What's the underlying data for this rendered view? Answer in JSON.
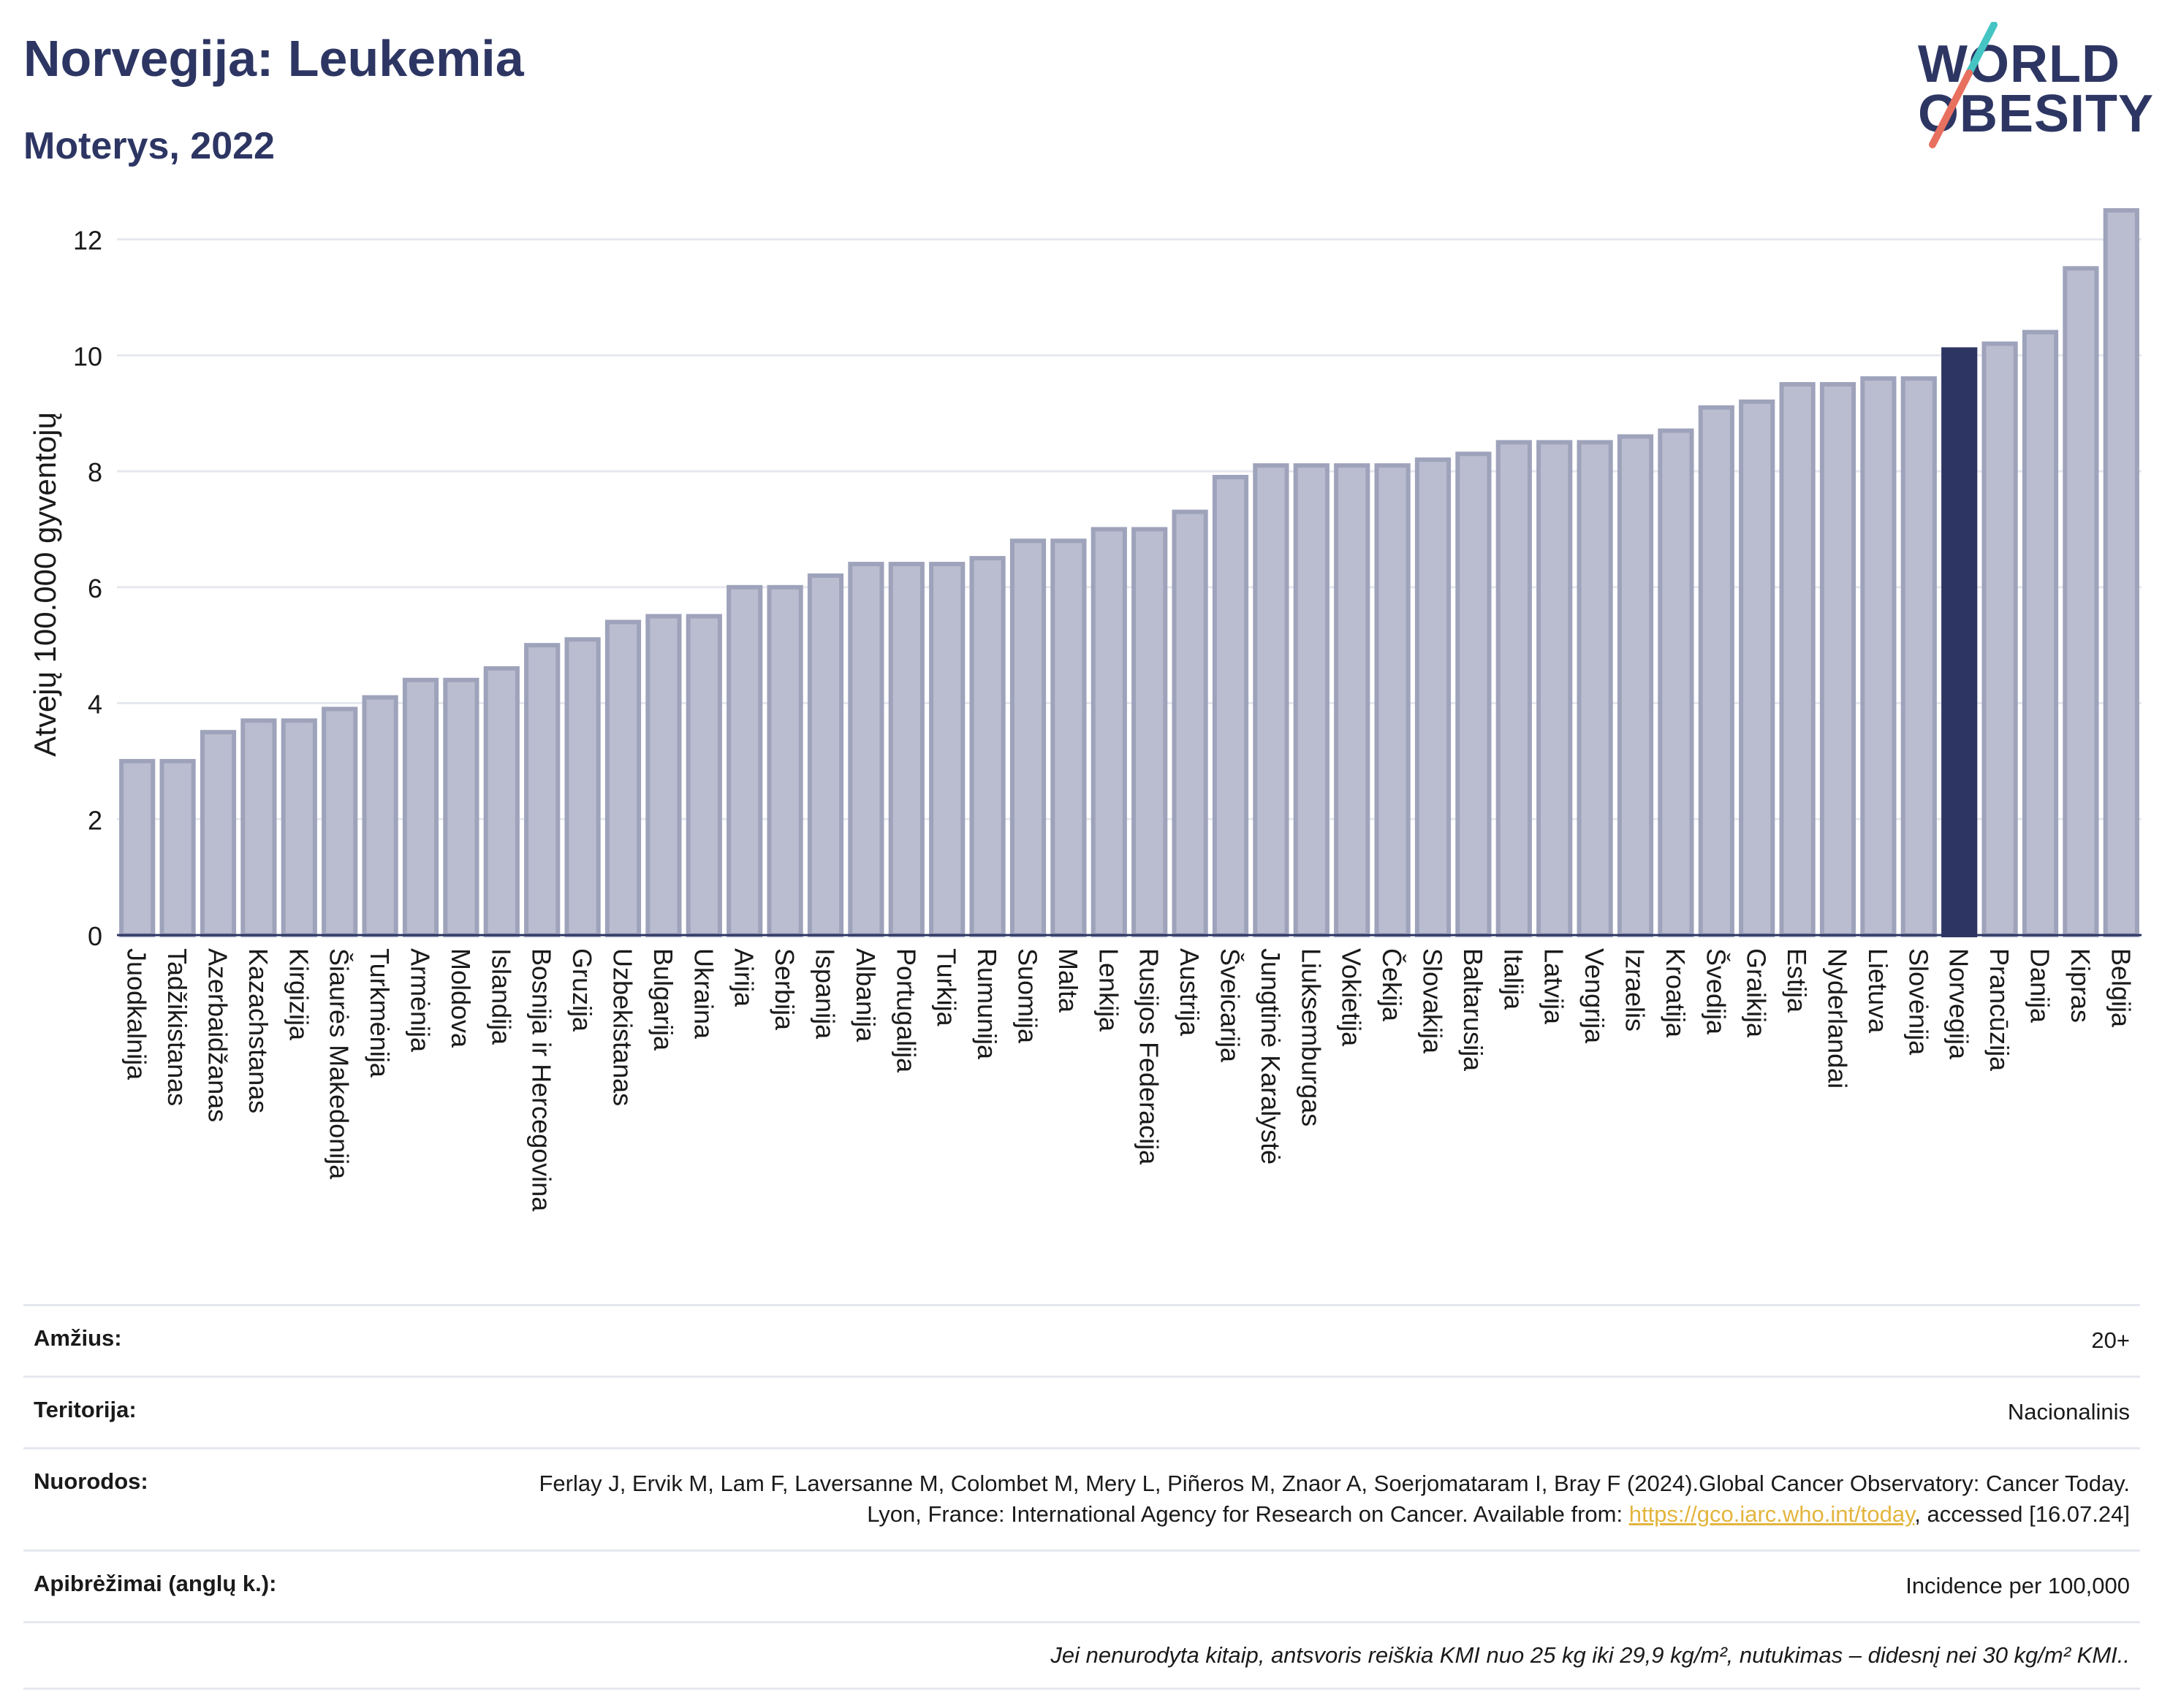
{
  "header": {
    "title": "Norvegija: Leukemia",
    "subtitle": "Moterys, 2022"
  },
  "logo": {
    "line1": "WORLD",
    "line2": "OBESITY",
    "accent_colors": [
      "#45c4c4",
      "#e8705f"
    ]
  },
  "colors": {
    "bar": "#b9bdcf",
    "bar_stroke": "#9ea3bb",
    "highlight": "#2d3663",
    "grid": "#e6e8f0"
  },
  "chart_data": {
    "type": "bar",
    "ylabel": "Atvejų 100.000 gyventojų",
    "xlabel": "",
    "ylim": [
      0,
      12.6
    ],
    "yticks": [
      0,
      2,
      4,
      6,
      8,
      10,
      12
    ],
    "grid": true,
    "highlight": "Norvegija",
    "categories": [
      "Juodkalnija",
      "Tadžikistanas",
      "Azerbaidžanas",
      "Kazachstanas",
      "Kirgizija",
      "Šiaurės Makedonija",
      "Turkmėnija",
      "Armėnija",
      "Moldova",
      "Islandija",
      "Bosnija ir Hercegovina",
      "Gruzija",
      "Uzbekistanas",
      "Bulgarija",
      "Ukraina",
      "Airija",
      "Serbija",
      "Ispanija",
      "Albanija",
      "Portugalija",
      "Turkija",
      "Rumunija",
      "Suomija",
      "Malta",
      "Lenkija",
      "Rusijos Federacija",
      "Austrija",
      "Šveicarija",
      "Jungtinė Karalystė",
      "Liuksemburgas",
      "Vokietija",
      "Čekija",
      "Slovakija",
      "Baltarusija",
      "Italija",
      "Latvija",
      "Vengrija",
      "Izraelis",
      "Kroatija",
      "Švedija",
      "Graikija",
      "Estija",
      "Nyderlandai",
      "Lietuva",
      "Slovėnija",
      "Norvegija",
      "Prancūzija",
      "Danija",
      "Kipras",
      "Belgija"
    ],
    "values": [
      3.0,
      3.0,
      3.5,
      3.7,
      3.7,
      3.9,
      4.1,
      4.4,
      4.4,
      4.6,
      5.0,
      5.1,
      5.4,
      5.5,
      5.5,
      6.0,
      6.0,
      6.2,
      6.4,
      6.4,
      6.4,
      6.5,
      6.8,
      6.8,
      7.0,
      7.0,
      7.3,
      7.9,
      8.1,
      8.1,
      8.1,
      8.1,
      8.2,
      8.3,
      8.5,
      8.5,
      8.5,
      8.6,
      8.7,
      9.1,
      9.2,
      9.5,
      9.5,
      9.6,
      9.6,
      10.1,
      10.2,
      10.4,
      11.5,
      12.5
    ]
  },
  "info": {
    "age_label": "Amžius:",
    "age_value": "20+",
    "territory_label": "Teritorija:",
    "territory_value": "Nacionalinis",
    "references_label": "Nuorodos:",
    "references_text": "Ferlay J, Ervik M, Lam F, Laversanne M, Colombet M, Mery L, Piñeros M, Znaor A, Soerjomataram I, Bray F (2024).Global Cancer Observatory: Cancer Today. Lyon, France: International Agency for Research on Cancer. Available from: ",
    "references_link": "https://gco.iarc.who.int/today",
    "references_suffix": ", accessed [16.07.24]",
    "definitions_label": "Apibrėžimai (anglų k.):",
    "definitions_value": "Incidence per 100,000",
    "note": "Jei nenurodyta kitaip, antsvoris reiškia KMI nuo 25 kg iki 29,9 kg/m², nutukimas – didesnį nei 30 kg/m² KMI.."
  }
}
